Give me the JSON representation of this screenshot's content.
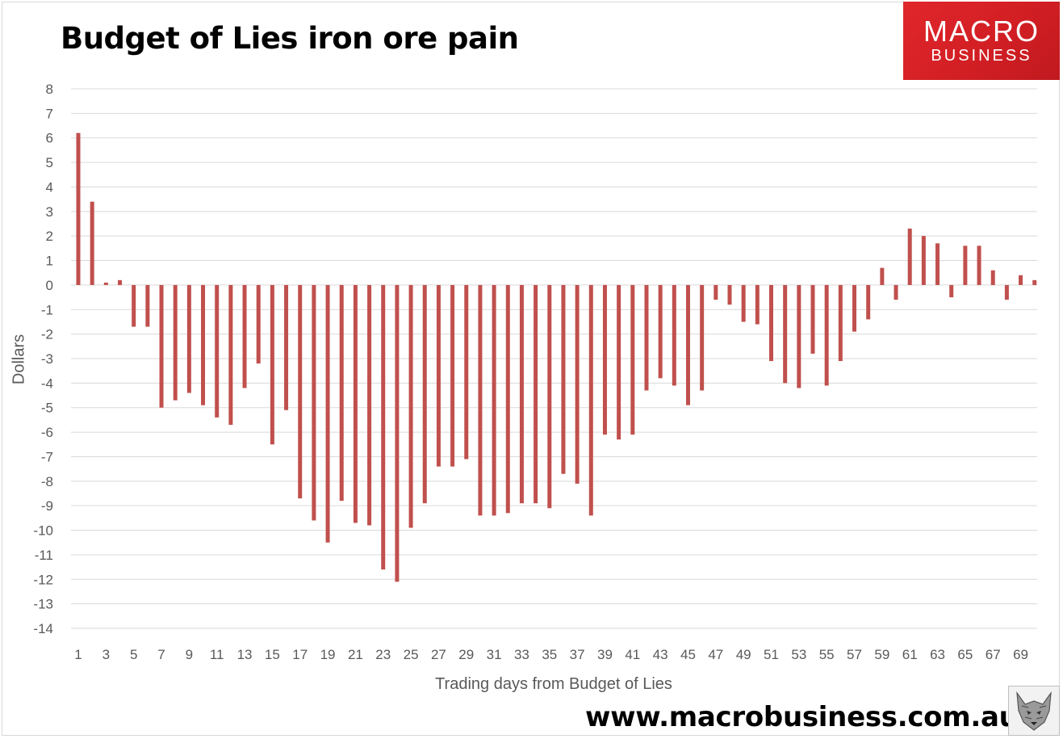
{
  "title": "Budget of Lies iron ore pain",
  "logo": {
    "line1": "MACRO",
    "line2": "BUSINESS"
  },
  "website": "www.macrobusiness.com.au",
  "colors": {
    "bar": "#c0504d",
    "grid": "#d9d9d9",
    "logo": "#d9232a"
  },
  "chart_data": {
    "type": "bar",
    "title": "Budget of Lies iron ore pain",
    "xlabel": "Trading days from Budget of Lies",
    "ylabel": "Dollars",
    "ylim": [
      -14,
      8
    ],
    "yticks": [
      8,
      7,
      6,
      5,
      4,
      3,
      2,
      1,
      0,
      -1,
      -2,
      -3,
      -4,
      -5,
      -6,
      -7,
      -8,
      -9,
      -10,
      -11,
      -12,
      -13,
      -14
    ],
    "xtick_labels": [
      "1",
      "3",
      "5",
      "7",
      "9",
      "11",
      "13",
      "15",
      "17",
      "19",
      "21",
      "23",
      "25",
      "27",
      "29",
      "31",
      "33",
      "35",
      "37",
      "39",
      "41",
      "43",
      "45",
      "47",
      "49",
      "51",
      "53",
      "55",
      "57",
      "59",
      "61",
      "63",
      "65",
      "67",
      "69"
    ],
    "categories": [
      1,
      2,
      3,
      4,
      5,
      6,
      7,
      8,
      9,
      10,
      11,
      12,
      13,
      14,
      15,
      16,
      17,
      18,
      19,
      20,
      21,
      22,
      23,
      24,
      25,
      26,
      27,
      28,
      29,
      30,
      31,
      32,
      33,
      34,
      35,
      36,
      37,
      38,
      39,
      40,
      41,
      42,
      43,
      44,
      45,
      46,
      47,
      48,
      49,
      50,
      51,
      52,
      53,
      54,
      55,
      56,
      57,
      58,
      59,
      60,
      61,
      62,
      63,
      64,
      65,
      66,
      67,
      68,
      69,
      70
    ],
    "values": [
      6.2,
      3.4,
      0.1,
      0.2,
      -1.7,
      -1.7,
      -5.0,
      -4.7,
      -4.4,
      -4.9,
      -5.4,
      -5.7,
      -4.2,
      -3.2,
      -6.5,
      -5.1,
      -8.7,
      -9.6,
      -10.5,
      -8.8,
      -9.7,
      -9.8,
      -11.6,
      -12.1,
      -9.9,
      -8.9,
      -7.4,
      -7.4,
      -7.1,
      -9.4,
      -9.4,
      -9.3,
      -8.9,
      -8.9,
      -9.1,
      -7.7,
      -8.1,
      -9.4,
      -6.1,
      -6.3,
      -6.1,
      -4.3,
      -3.8,
      -4.1,
      -4.9,
      -4.3,
      -0.6,
      -0.8,
      -1.5,
      -1.6,
      -3.1,
      -4.0,
      -4.2,
      -2.8,
      -4.1,
      -3.1,
      -1.9,
      -1.4,
      0.7,
      -0.6,
      2.3,
      2.0,
      1.7,
      -0.5,
      1.6,
      1.6,
      0.6,
      -0.6,
      0.4,
      0.2
    ]
  }
}
